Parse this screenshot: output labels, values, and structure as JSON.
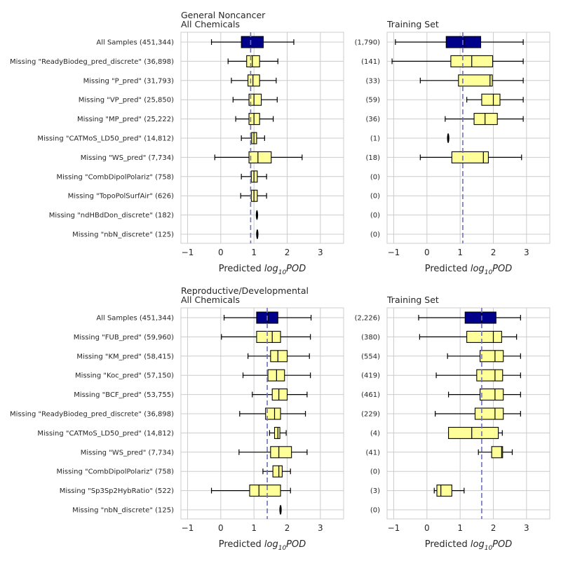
{
  "chart_data": [
    {
      "type": "boxplot",
      "title": "General Noncancer\nAll Chemicals",
      "xlabel": "Predicted log10POD",
      "xlim": [
        -1.2,
        3.7
      ],
      "xticks": [
        -1,
        0,
        1,
        2,
        3
      ],
      "reference_line": 0.9,
      "categories": [
        "All Samples (451,344)",
        "Missing \"ReadyBiodeg_pred_discrete\" (36,898)",
        "Missing \"P_pred\" (31,793)",
        "Missing \"VP_pred\" (25,850)",
        "Missing \"MP_pred\" (25,222)",
        "Missing \"CATMoS_LD50_pred\" (14,812)",
        "Missing \"WS_pred\" (7,734)",
        "Missing \"CombDipolPolariz\" (758)",
        "Missing \"TopoPolSurfAir\" (626)",
        "Missing \"ndHBdDon_discrete\" (182)",
        "Missing \"nbN_discrete\" (125)"
      ],
      "boxes": [
        {
          "min": -0.28,
          "q1": 0.62,
          "median": 0.9,
          "q3": 1.28,
          "max": 2.2,
          "color": "#00008b"
        },
        {
          "min": 0.22,
          "q1": 0.78,
          "median": 0.95,
          "q3": 1.17,
          "max": 1.72,
          "color": "#ffff99"
        },
        {
          "min": 0.32,
          "q1": 0.82,
          "median": 0.97,
          "q3": 1.17,
          "max": 1.67,
          "color": "#ffff99"
        },
        {
          "min": 0.37,
          "q1": 0.85,
          "median": 1.0,
          "q3": 1.22,
          "max": 1.7,
          "color": "#ffff99"
        },
        {
          "min": 0.45,
          "q1": 0.85,
          "median": 1.0,
          "q3": 1.17,
          "max": 1.58,
          "color": "#ffff99"
        },
        {
          "min": 0.62,
          "q1": 0.93,
          "median": 1.0,
          "q3": 1.08,
          "max": 1.32,
          "color": "#ffff99"
        },
        {
          "min": -0.18,
          "q1": 0.85,
          "median": 1.12,
          "q3": 1.52,
          "max": 2.45,
          "color": "#ffff99"
        },
        {
          "min": 0.62,
          "q1": 0.92,
          "median": 1.0,
          "q3": 1.1,
          "max": 1.38,
          "color": "#ffff99"
        },
        {
          "min": 0.6,
          "q1": 0.92,
          "median": 1.0,
          "q3": 1.1,
          "max": 1.38,
          "color": "#ffff99"
        },
        {
          "min": 1.05,
          "q1": 1.07,
          "median": 1.09,
          "q3": 1.11,
          "max": 1.12,
          "color": "#ffff99"
        },
        {
          "min": 1.09,
          "q1": 1.09,
          "median": 1.1,
          "q3": 1.11,
          "max": 1.11,
          "color": "#ffff99"
        }
      ]
    },
    {
      "type": "boxplot",
      "title": "Training Set",
      "xlabel": "Predicted log10POD",
      "xlim": [
        -1.2,
        3.7
      ],
      "xticks": [
        -1,
        0,
        1,
        2,
        3
      ],
      "reference_line": 1.08,
      "categories": [
        "(1,790)",
        "(141)",
        "(33)",
        "(59)",
        "(36)",
        "(1)",
        "(18)",
        "(0)",
        "(0)",
        "(0)",
        "(0)"
      ],
      "boxes": [
        {
          "min": -0.95,
          "q1": 0.58,
          "median": 1.12,
          "q3": 1.62,
          "max": 2.9,
          "color": "#00008b"
        },
        {
          "min": -1.05,
          "q1": 0.72,
          "median": 1.35,
          "q3": 1.98,
          "max": 2.9,
          "color": "#ffff99"
        },
        {
          "min": -0.2,
          "q1": 0.95,
          "median": 1.9,
          "q3": 1.97,
          "max": 2.9,
          "color": "#ffff99"
        },
        {
          "min": 1.2,
          "q1": 1.65,
          "median": 2.0,
          "q3": 2.2,
          "max": 2.9,
          "color": "#ffff99"
        },
        {
          "min": 0.55,
          "q1": 1.42,
          "median": 1.75,
          "q3": 2.12,
          "max": 2.9,
          "color": "#ffff99"
        },
        {
          "min": 0.62,
          "q1": 0.62,
          "median": 0.64,
          "q3": 0.66,
          "max": 0.66,
          "color": "#ffff99"
        },
        {
          "min": -0.2,
          "q1": 0.75,
          "median": 1.7,
          "q3": 1.85,
          "max": 2.85,
          "color": "#ffff99"
        },
        null,
        null,
        null,
        null
      ]
    },
    {
      "type": "boxplot",
      "title": "Reproductive/Developmental\nAll Chemicals",
      "xlabel": "Predicted log10POD",
      "xlim": [
        -1.2,
        3.7
      ],
      "xticks": [
        -1,
        0,
        1,
        2,
        3
      ],
      "reference_line": 1.4,
      "categories": [
        "All Samples (451,344)",
        "Missing \"FUB_pred\" (59,960)",
        "Missing \"KM_pred\" (58,415)",
        "Missing \"Koc_pred\" (57,150)",
        "Missing \"BCF_pred\" (53,755)",
        "Missing \"ReadyBiodeg_pred_discrete\" (36,898)",
        "Missing \"CATMoS_LD50_pred\" (14,812)",
        "Missing \"WS_pred\" (7,734)",
        "Missing \"CombDipolPolariz\" (758)",
        "Missing \"Sp3Sp2HybRatio\" (522)",
        "Missing \"nbN_discrete\" (125)"
      ],
      "boxes": [
        {
          "min": 0.1,
          "q1": 1.08,
          "median": 1.42,
          "q3": 1.72,
          "max": 2.72,
          "color": "#00008b"
        },
        {
          "min": 0.02,
          "q1": 1.08,
          "median": 1.55,
          "q3": 1.8,
          "max": 2.7,
          "color": "#ffff99"
        },
        {
          "min": 0.82,
          "q1": 1.5,
          "median": 1.72,
          "q3": 2.0,
          "max": 2.67,
          "color": "#ffff99"
        },
        {
          "min": 0.67,
          "q1": 1.42,
          "median": 1.68,
          "q3": 1.92,
          "max": 2.7,
          "color": "#ffff99"
        },
        {
          "min": 0.95,
          "q1": 1.55,
          "median": 1.75,
          "q3": 2.0,
          "max": 2.6,
          "color": "#ffff99"
        },
        {
          "min": 0.57,
          "q1": 1.35,
          "median": 1.62,
          "q3": 1.8,
          "max": 2.55,
          "color": "#ffff99"
        },
        {
          "min": 1.47,
          "q1": 1.62,
          "median": 1.72,
          "q3": 1.78,
          "max": 1.97,
          "color": "#ffff99"
        },
        {
          "min": 0.55,
          "q1": 1.5,
          "median": 1.75,
          "q3": 2.13,
          "max": 2.6,
          "color": "#ffff99"
        },
        {
          "min": 1.27,
          "q1": 1.57,
          "median": 1.75,
          "q3": 1.85,
          "max": 2.1,
          "color": "#ffff99"
        },
        {
          "min": -0.28,
          "q1": 0.87,
          "median": 1.15,
          "q3": 1.8,
          "max": 2.1,
          "color": "#ffff99"
        },
        {
          "min": 1.78,
          "q1": 1.79,
          "median": 1.8,
          "q3": 1.81,
          "max": 1.82,
          "color": "#ffff99"
        }
      ]
    },
    {
      "type": "boxplot",
      "title": "Training Set",
      "xlabel": "Predicted log10POD",
      "xlim": [
        -1.2,
        3.7
      ],
      "xticks": [
        -1,
        0,
        1,
        2,
        3
      ],
      "reference_line": 1.65,
      "categories": [
        "(2,226)",
        "(380)",
        "(554)",
        "(419)",
        "(461)",
        "(229)",
        "(4)",
        "(41)",
        "(0)",
        "(3)",
        "(0)"
      ],
      "boxes": [
        {
          "min": -0.25,
          "q1": 1.15,
          "median": 1.65,
          "q3": 2.08,
          "max": 2.82,
          "color": "#00008b"
        },
        {
          "min": -0.22,
          "q1": 1.2,
          "median": 2.0,
          "q3": 2.25,
          "max": 2.7,
          "color": "#ffff99"
        },
        {
          "min": 0.62,
          "q1": 1.6,
          "median": 2.05,
          "q3": 2.3,
          "max": 2.82,
          "color": "#ffff99"
        },
        {
          "min": 0.28,
          "q1": 1.5,
          "median": 2.05,
          "q3": 2.28,
          "max": 2.82,
          "color": "#ffff99"
        },
        {
          "min": 0.65,
          "q1": 1.6,
          "median": 2.05,
          "q3": 2.3,
          "max": 2.82,
          "color": "#ffff99"
        },
        {
          "min": 0.25,
          "q1": 1.45,
          "median": 2.05,
          "q3": 2.3,
          "max": 2.82,
          "color": "#ffff99"
        },
        {
          "min": 0.65,
          "q1": 0.65,
          "median": 1.35,
          "q3": 2.15,
          "max": 2.27,
          "color": "#ffff99"
        },
        {
          "min": 1.55,
          "q1": 1.95,
          "median": 2.25,
          "q3": 2.28,
          "max": 2.57,
          "color": "#ffff99"
        },
        null,
        {
          "min": 0.22,
          "q1": 0.3,
          "median": 0.42,
          "q3": 0.75,
          "max": 1.12,
          "color": "#ffff99"
        },
        null
      ]
    }
  ],
  "style": {
    "grid_color": "#cccccc",
    "reference_line_color": "#6f6fc0",
    "box_edge_color": "#000000"
  }
}
